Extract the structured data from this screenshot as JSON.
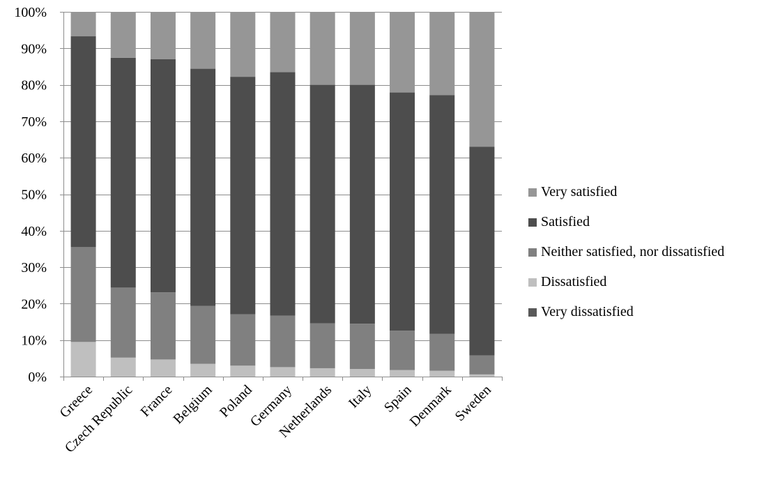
{
  "chart_data": {
    "type": "bar",
    "stacked": true,
    "percent": true,
    "categories": [
      "Greece",
      "Czech Republic",
      "France",
      "Belgium",
      "Poland",
      "Germany",
      "Netherlands",
      "Italy",
      "Spain",
      "Denmark",
      "Sweden"
    ],
    "series": [
      {
        "name": "Very dissatisfied",
        "color": "#595959",
        "values": [
          0,
          0,
          0,
          0,
          0,
          0,
          0,
          0,
          0,
          0,
          0
        ]
      },
      {
        "name": "Dissatisfied",
        "color": "#bfbfbf",
        "values": [
          9.5,
          5.2,
          4.7,
          3.5,
          3.0,
          2.6,
          2.3,
          2.1,
          1.8,
          1.6,
          0.6
        ]
      },
      {
        "name": "Neither satisfied, nor dissatisfied",
        "color": "#808080",
        "values": [
          26.0,
          19.2,
          18.4,
          15.9,
          14.1,
          14.1,
          12.3,
          12.4,
          10.8,
          10.1,
          5.2
        ]
      },
      {
        "name": "Satisfied",
        "color": "#4d4d4d",
        "values": [
          57.8,
          63.0,
          63.9,
          65.0,
          65.1,
          66.8,
          65.4,
          65.5,
          65.3,
          65.5,
          57.2
        ]
      },
      {
        "name": "Very satisfied",
        "color": "#969696",
        "values": [
          6.7,
          12.6,
          13.0,
          15.6,
          17.8,
          16.5,
          20.0,
          20.0,
          22.1,
          22.8,
          37.0
        ]
      }
    ],
    "yticks": [
      "0%",
      "10%",
      "20%",
      "30%",
      "40%",
      "50%",
      "60%",
      "70%",
      "80%",
      "90%",
      "100%"
    ],
    "ylim": [
      0,
      100
    ],
    "legend_position": "right",
    "legend_order": [
      "Very satisfied",
      "Satisfied",
      "Neither satisfied, nor dissatisfied",
      "Dissatisfied",
      "Very dissatisfied"
    ],
    "grid": true
  }
}
